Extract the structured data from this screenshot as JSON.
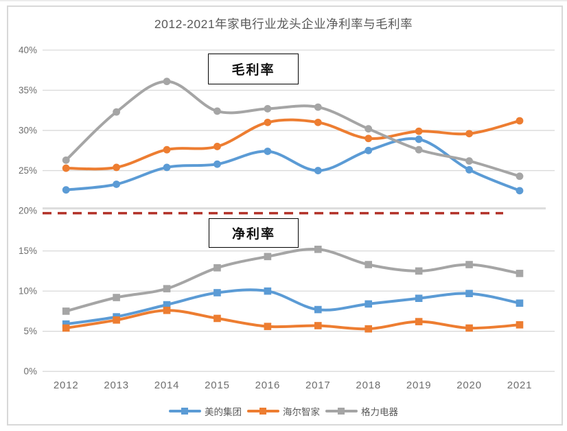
{
  "colors": {
    "grid": "#D9D9D9",
    "grid_divider_band": "#DCDCDC",
    "axis_text": "#6E6E6E",
    "title_text": "#595959",
    "frame_border": "#D8D8D8",
    "annotation_border": "#000000",
    "divider_red": "#B23229",
    "midea_blue": "#5B9BD5",
    "haier_orange": "#ED7D31",
    "gree_gray": "#A5A5A5"
  },
  "annotations": {
    "gross_label": "毛利率",
    "net_label": "净利率"
  },
  "chart_data": {
    "type": "line",
    "title": "2012-2021年家电行业龙头企业净利率与毛利率",
    "x": [
      "2012",
      "2013",
      "2014",
      "2015",
      "2016",
      "2017",
      "2018",
      "2019",
      "2020",
      "2021"
    ],
    "ylim": [
      0,
      40
    ],
    "ytick_labels": [
      "0%",
      "5%",
      "10%",
      "15%",
      "20%",
      "25%",
      "30%",
      "35%",
      "40%"
    ],
    "grid": true,
    "legend_position": "bottom",
    "legend": [
      "美的集团",
      "海尔智家",
      "格力电器"
    ],
    "divider_line": {
      "style": "dashed",
      "color": "#B23229",
      "y_value": 19.7
    },
    "series": [
      {
        "name": "美的集团",
        "group": "毛利率",
        "color": "#5B9BD5",
        "marker": "circle",
        "values": [
          22.6,
          23.3,
          25.4,
          25.8,
          27.4,
          25.0,
          27.5,
          28.9,
          25.1,
          22.5
        ]
      },
      {
        "name": "海尔智家",
        "group": "毛利率",
        "color": "#ED7D31",
        "marker": "circle",
        "values": [
          25.3,
          25.4,
          27.6,
          28.0,
          31.0,
          31.0,
          29.0,
          29.9,
          29.6,
          31.2
        ]
      },
      {
        "name": "格力电器",
        "group": "毛利率",
        "color": "#A5A5A5",
        "marker": "circle",
        "values": [
          26.3,
          32.3,
          36.1,
          32.4,
          32.7,
          32.9,
          30.2,
          27.6,
          26.2,
          24.3
        ]
      },
      {
        "name": "美的集团",
        "group": "净利率",
        "color": "#5B9BD5",
        "marker": "square",
        "values": [
          5.9,
          6.8,
          8.3,
          9.8,
          10.0,
          7.7,
          8.4,
          9.1,
          9.7,
          8.5
        ]
      },
      {
        "name": "海尔智家",
        "group": "净利率",
        "color": "#ED7D31",
        "marker": "square",
        "values": [
          5.4,
          6.4,
          7.6,
          6.6,
          5.6,
          5.7,
          5.3,
          6.2,
          5.4,
          5.8
        ]
      },
      {
        "name": "格力电器",
        "group": "净利率",
        "color": "#A5A5A5",
        "marker": "square",
        "values": [
          7.5,
          9.2,
          10.3,
          12.9,
          14.3,
          15.2,
          13.3,
          12.5,
          13.3,
          12.2
        ]
      }
    ]
  }
}
